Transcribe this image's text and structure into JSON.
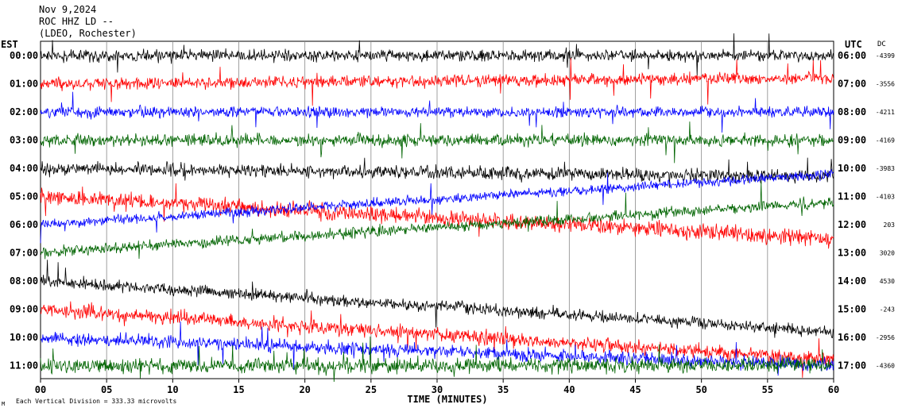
{
  "header": {
    "date": "Nov 9,2024",
    "station": "ROC HHZ LD --",
    "network": "(LDEO, Rochester)"
  },
  "left_zone": "EST",
  "right_zone": "UTC",
  "dc_header": "DC",
  "footer": {
    "scale_note": "Each Vertical Division =  333.33 microvolts",
    "xlabel": "TIME (MINUTES)",
    "mark": "M"
  },
  "chart_data": {
    "type": "line",
    "title": "",
    "xlabel": "TIME (MINUTES)",
    "xlim": [
      0,
      60
    ],
    "xticks": [
      "00",
      "05",
      "10",
      "15",
      "20",
      "25",
      "30",
      "35",
      "40",
      "45",
      "50",
      "55",
      "60"
    ],
    "colors": {
      "black": "#000000",
      "red": "#ff0000",
      "blue": "#0000ff",
      "green": "#006400",
      "grid": "#888888"
    },
    "rows": [
      {
        "est": "00:00",
        "utc": "06:00",
        "dc": "-4399",
        "color": "black",
        "start": 0,
        "end": 0,
        "amp": 0.55
      },
      {
        "est": "01:00",
        "utc": "07:00",
        "dc": "-3556",
        "color": "red",
        "start": 0,
        "end": -0.2,
        "amp": 0.55
      },
      {
        "est": "02:00",
        "utc": "08:00",
        "dc": "-4211",
        "color": "blue",
        "start": 0,
        "end": 0,
        "amp": 0.5
      },
      {
        "est": "03:00",
        "utc": "09:00",
        "dc": "-4169",
        "color": "green",
        "start": 0,
        "end": 0,
        "amp": 0.55
      },
      {
        "est": "04:00",
        "utc": "10:00",
        "dc": "-3983",
        "color": "black",
        "start": 0,
        "end": 0.3,
        "amp": 0.6
      },
      {
        "est": "05:00",
        "utc": "11:00",
        "dc": "-4103",
        "color": "red",
        "start": 0,
        "end": 1.5,
        "amp": 0.75
      },
      {
        "est": "06:00",
        "utc": "12:00",
        "dc": "203",
        "color": "blue",
        "start": 0,
        "end": -1.8,
        "amp": 0.45
      },
      {
        "est": "07:00",
        "utc": "13:00",
        "dc": "3020",
        "color": "green",
        "start": 0,
        "end": -1.8,
        "amp": 0.5
      },
      {
        "est": "08:00",
        "utc": "14:00",
        "dc": "4530",
        "color": "black",
        "start": 0,
        "end": 1.8,
        "amp": 0.55
      },
      {
        "est": "09:00",
        "utc": "15:00",
        "dc": "-243",
        "color": "red",
        "start": 0,
        "end": 1.8,
        "amp": 0.65
      },
      {
        "est": "10:00",
        "utc": "16:00",
        "dc": "-2956",
        "color": "blue",
        "start": 0,
        "end": 1.0,
        "amp": 0.6
      },
      {
        "est": "11:00",
        "utc": "17:00",
        "dc": "-4360",
        "color": "green",
        "start": 0,
        "end": 0,
        "amp": 0.7
      }
    ]
  }
}
